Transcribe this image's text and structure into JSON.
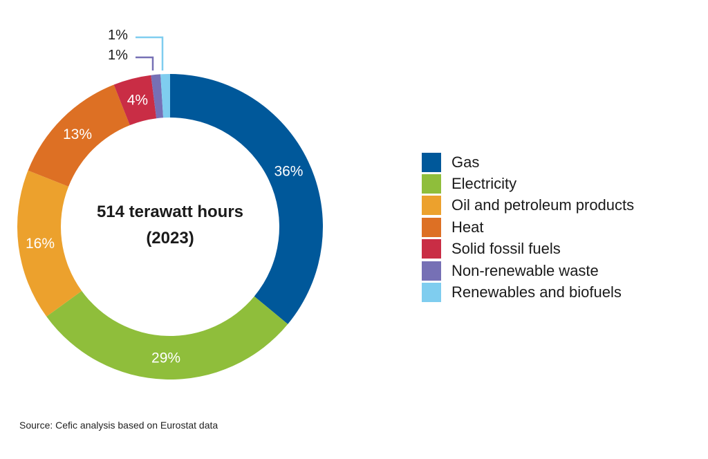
{
  "chart_data": {
    "type": "pie",
    "variant": "donut",
    "title": "",
    "center_label": [
      "514 terawatt hours",
      "(2023)"
    ],
    "categories": [
      "Gas",
      "Electricity",
      "Oil and petroleum products",
      "Heat",
      "Solid fossil fuels",
      "Non-renewable waste",
      "Renewables and biofuels"
    ],
    "values": [
      36,
      29,
      16,
      13,
      4,
      1,
      1
    ],
    "value_labels": [
      "36%",
      "29%",
      "16%",
      "13%",
      "4%",
      "1%",
      "1%"
    ],
    "colors": [
      "#00589a",
      "#8fbe3b",
      "#eca12d",
      "#dd7024",
      "#c92d45",
      "#7670b5",
      "#7fcdef"
    ],
    "unit": "%",
    "total": "514 terawatt hours",
    "year": "2023",
    "legend_position": "right",
    "source": "Source: Cefic analysis based on Eurostat data"
  },
  "center": {
    "line1": "514 terawatt hours",
    "line2": "(2023)"
  },
  "callouts": [
    {
      "label": "1%",
      "color": "#7fcdef"
    },
    {
      "label": "1%",
      "color": "#7670b5"
    }
  ],
  "legend": {
    "items": [
      {
        "label": "Gas",
        "color": "#00589a"
      },
      {
        "label": "Electricity",
        "color": "#8fbe3b"
      },
      {
        "label": "Oil and petroleum products",
        "color": "#eca12d"
      },
      {
        "label": "Heat",
        "color": "#dd7024"
      },
      {
        "label": "Solid fossil fuels",
        "color": "#c92d45"
      },
      {
        "label": "Non-renewable waste",
        "color": "#7670b5"
      },
      {
        "label": "Renewables and biofuels",
        "color": "#7fcdef"
      }
    ]
  },
  "footer": {
    "source": "Source: Cefic analysis based on Eurostat data"
  }
}
